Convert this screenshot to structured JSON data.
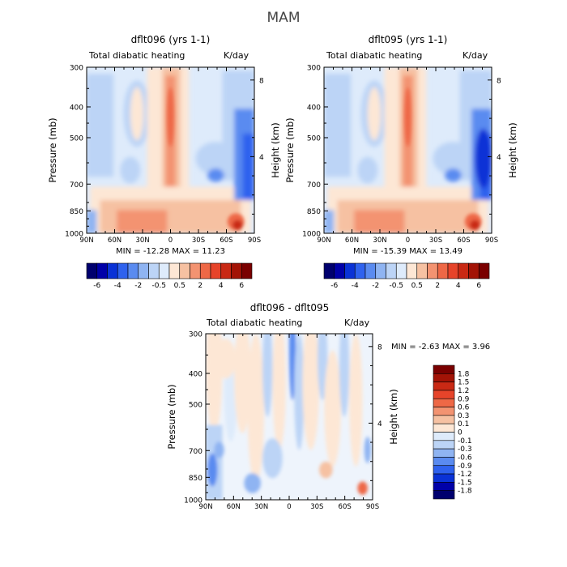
{
  "page_title": "MAM",
  "panels": {
    "left": {
      "run_title": "dflt096 (yrs 1-1)",
      "subtitle": "Total diabatic heating",
      "units": "K/day",
      "minmax": "MIN = -12.28   MAX = 11.23"
    },
    "right": {
      "run_title": "dflt095 (yrs 1-1)",
      "subtitle": "Total diabatic heating",
      "units": "K/day",
      "minmax": "MIN = -15.39   MAX = 13.49"
    },
    "diff": {
      "run_title": "dflt096 - dflt095",
      "subtitle": "Total diabatic heating",
      "units": "K/day",
      "minmax": "MIN =   -2.63   MAX =   3.96"
    }
  },
  "axes": {
    "ylabel_left": "Pressure (mb)",
    "ylabel_right": "Height (km)",
    "pressure_ticks": [
      "300",
      "400",
      "500",
      "700",
      "850",
      "1000"
    ],
    "height_ticks": [
      "8",
      "4"
    ],
    "lat_ticks": [
      "90N",
      "60N",
      "30N",
      "0",
      "30S",
      "60S",
      "90S"
    ]
  },
  "colors": {
    "blue_scale": [
      "#00006e",
      "#0000a8",
      "#0a32d6",
      "#2f62ee",
      "#5a8bf0",
      "#8fb4f2",
      "#bcd4f6",
      "#deebfb"
    ],
    "red_scale": [
      "#fde7d5",
      "#f6c1a2",
      "#f39371",
      "#ee6846",
      "#e6442a",
      "#c92914",
      "#a31306",
      "#7a0000"
    ]
  },
  "chart_data": [
    {
      "type": "heatmap",
      "name": "dflt096",
      "title": "dflt096 (yrs 1-1)",
      "subtitle": "Total diabatic heating",
      "units": "K/day",
      "xlabel": "",
      "ylabel": "Pressure (mb)",
      "ylabel_right": "Height (km)",
      "x_ticks": [
        "90N",
        "60N",
        "30N",
        "0",
        "30S",
        "60S",
        "90S"
      ],
      "x_range": [
        90,
        -90
      ],
      "y_ticks": [
        300,
        400,
        500,
        700,
        850,
        1000
      ],
      "y_range": [
        300,
        1000
      ],
      "y_scale": "log",
      "right_ticks_km": [
        8,
        4
      ],
      "contour_levels": [
        -6,
        -5,
        -4,
        -3,
        -2,
        -1,
        -0.5,
        0,
        0.5,
        1,
        2,
        3,
        4,
        5,
        6
      ],
      "colorbar_labels": [
        "-6",
        "-4",
        "-2",
        "-0.5",
        "0.5",
        "2",
        "4",
        "6"
      ],
      "min": -12.28,
      "max": 11.23,
      "legend_position": "bottom",
      "grid": false
    },
    {
      "type": "heatmap",
      "name": "dflt095",
      "title": "dflt095 (yrs 1-1)",
      "subtitle": "Total diabatic heating",
      "units": "K/day",
      "xlabel": "",
      "ylabel": "Pressure (mb)",
      "ylabel_right": "Height (km)",
      "x_ticks": [
        "90N",
        "60N",
        "30N",
        "0",
        "30S",
        "60S",
        "90S"
      ],
      "x_range": [
        90,
        -90
      ],
      "y_ticks": [
        300,
        400,
        500,
        700,
        850,
        1000
      ],
      "y_range": [
        300,
        1000
      ],
      "y_scale": "log",
      "right_ticks_km": [
        8,
        4
      ],
      "contour_levels": [
        -6,
        -5,
        -4,
        -3,
        -2,
        -1,
        -0.5,
        0,
        0.5,
        1,
        2,
        3,
        4,
        5,
        6
      ],
      "colorbar_labels": [
        "-6",
        "-4",
        "-2",
        "-0.5",
        "0.5",
        "2",
        "4",
        "6"
      ],
      "min": -15.39,
      "max": 13.49,
      "legend_position": "bottom",
      "grid": false
    },
    {
      "type": "heatmap",
      "name": "dflt096 - dflt095",
      "title": "dflt096 - dflt095",
      "subtitle": "Total diabatic heating",
      "units": "K/day",
      "xlabel": "",
      "ylabel": "Pressure (mb)",
      "ylabel_right": "Height (km)",
      "x_ticks": [
        "90N",
        "60N",
        "30N",
        "0",
        "30S",
        "60S",
        "90S"
      ],
      "x_range": [
        90,
        -90
      ],
      "y_ticks": [
        300,
        400,
        500,
        700,
        850,
        1000
      ],
      "y_range": [
        300,
        1000
      ],
      "y_scale": "log",
      "right_ticks_km": [
        8,
        4
      ],
      "contour_levels": [
        -1.8,
        -1.5,
        -1.2,
        -0.9,
        -0.6,
        -0.3,
        -0.1,
        0,
        0.1,
        0.3,
        0.6,
        0.9,
        1.2,
        1.5,
        1.8
      ],
      "colorbar_labels": [
        "1.8",
        "1.5",
        "1.2",
        "0.9",
        "0.6",
        "0.3",
        "0.1",
        "0",
        "-0.1",
        "-0.3",
        "-0.6",
        "-0.9",
        "-1.2",
        "-1.5",
        "-1.8"
      ],
      "min": -2.63,
      "max": 3.96,
      "legend_position": "right",
      "grid": false
    }
  ]
}
